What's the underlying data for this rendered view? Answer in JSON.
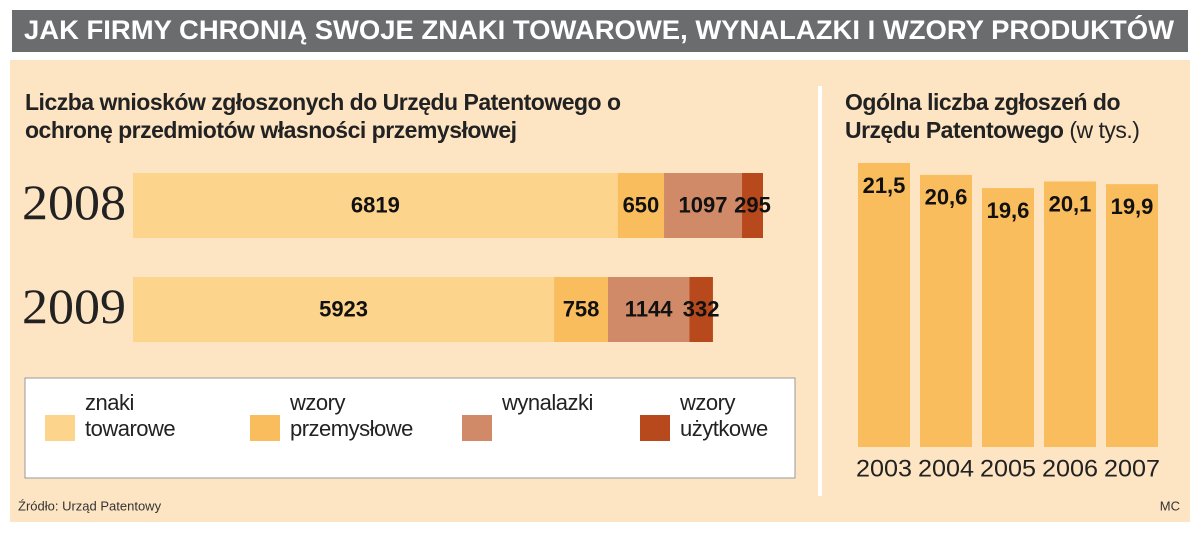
{
  "title": "JAK FIRMY CHRONIĄ SWOJE ZNAKI TOWAROWE, WYNALAZKI I WZORY PRODUKTÓW",
  "chart_data": [
    {
      "type": "stacked-bar-horizontal",
      "title": "Liczba wniosków zgłoszonych do Urzędu Patentowego o ochronę przedmiotów własności przemysłowej",
      "categories": [
        "2008",
        "2009"
      ],
      "series": [
        {
          "name": "znaki towarowe",
          "color": "#fdd48c",
          "values": [
            6819,
            5923
          ]
        },
        {
          "name": "wzory przemysłowe",
          "color": "#f9bd5e",
          "values": [
            650,
            758
          ]
        },
        {
          "name": "wynalazki",
          "color": "#d08a68",
          "values": [
            1097,
            1144
          ]
        },
        {
          "name": "wzory użytkowe",
          "color": "#b8491d",
          "values": [
            295,
            332
          ]
        }
      ]
    },
    {
      "type": "bar",
      "title": "Ogólna liczba zgłoszeń do Urzędu Patentowego",
      "subtitle": "(w tys.)",
      "categories": [
        "2003",
        "2004",
        "2005",
        "2006",
        "2007"
      ],
      "values": [
        21.5,
        20.6,
        19.6,
        20.1,
        19.9
      ],
      "value_labels": [
        "21,5",
        "20,6",
        "19,6",
        "20,1",
        "19,9"
      ],
      "color": "#f9bd5e"
    }
  ],
  "source": "Źródło: Urząd Patentowy",
  "credit": "MC"
}
